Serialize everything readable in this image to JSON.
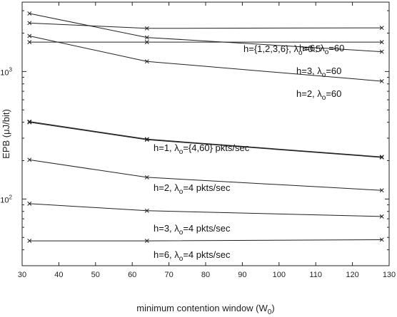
{
  "chart_data": {
    "type": "line",
    "title": "",
    "xlabel_main": "minimum contention window (W",
    "xlabel_sub": "0",
    "xlabel_close": ")",
    "ylabel": "EPB (μJ/bit)",
    "xlim": [
      30,
      130
    ],
    "ylim": [
      30,
      3500
    ],
    "yscale": "log",
    "xticks": [
      30,
      40,
      50,
      60,
      70,
      80,
      90,
      100,
      110,
      120,
      130
    ],
    "yticks": [
      {
        "value": 100,
        "base": "10",
        "exp": "2"
      },
      {
        "value": 1000,
        "base": "10",
        "exp": "3"
      }
    ],
    "x": [
      32,
      64,
      128
    ],
    "series": [
      {
        "values": [
          2400,
          2180,
          2200
        ]
      },
      {
        "values": [
          2850,
          1850,
          1430
        ]
      },
      {
        "values": [
          1700,
          1700,
          1700
        ]
      },
      {
        "values": [
          1900,
          1200,
          840
        ]
      },
      {
        "values": [
          400,
          292,
          212
        ]
      },
      {
        "values": [
          405,
          295,
          214
        ]
      },
      {
        "values": [
          203,
          148,
          117
        ]
      },
      {
        "values": [
          92,
          81,
          73
        ]
      },
      {
        "values": [
          47,
          47,
          48
        ]
      }
    ],
    "annotations": [
      {
        "text": "h=6, λ",
        "sub": "o",
        "tail": "=60"
      },
      {
        "text": "h={1,2,3,6}, λ",
        "sub": "o",
        "tail": "=0.5"
      },
      {
        "text": "h=3, λ",
        "sub": "o",
        "tail": "=60"
      },
      {
        "text": "h=2, λ",
        "sub": "o",
        "tail": "=60"
      },
      {
        "text": "h=1, λ",
        "sub": "o",
        "tail": "={4,60} pkts/sec"
      },
      {
        "text": "h=2, λ",
        "sub": "o",
        "tail": "=4 pkts/sec"
      },
      {
        "text": "h=3, λ",
        "sub": "o",
        "tail": "=4 pkts/sec"
      },
      {
        "text": "h=6, λ",
        "sub": "o",
        "tail": "=4 pkts/sec"
      }
    ],
    "grid": false,
    "legend": "none"
  }
}
